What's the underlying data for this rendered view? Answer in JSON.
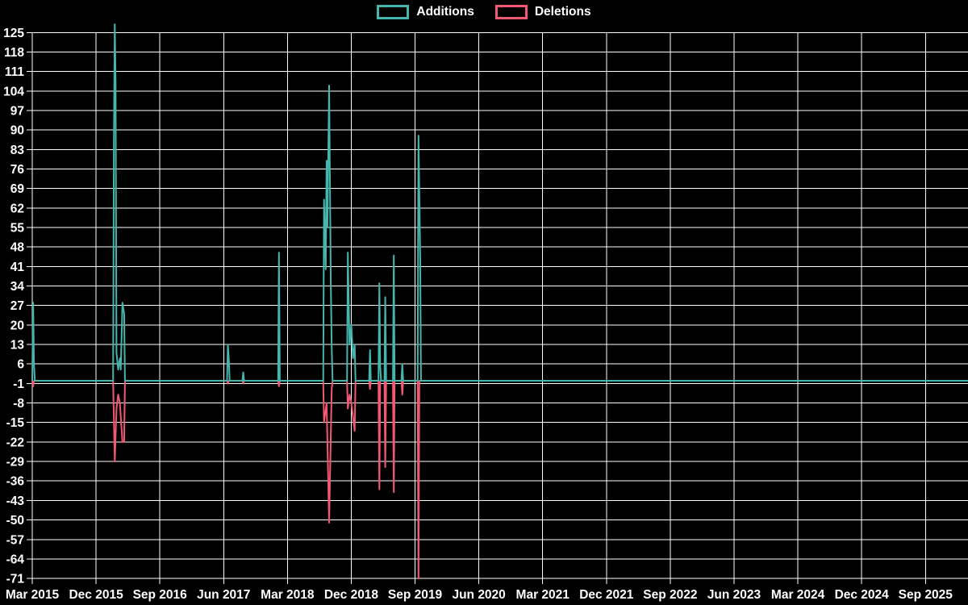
{
  "page": {
    "background": "#000000"
  },
  "legend": {
    "position": "top-center",
    "items": [
      {
        "label": "Additions",
        "color": "#45b6ae"
      },
      {
        "label": "Deletions",
        "color": "#f25872"
      }
    ]
  },
  "chart_data": {
    "type": "line",
    "title": "",
    "xlabel": "",
    "ylabel": "",
    "grid": true,
    "background": "#000000",
    "grid_color": "#ffffff",
    "x_axis": {
      "range": [
        2015.17,
        2026.17
      ],
      "tick_positions": [
        2015.17,
        2015.92,
        2016.67,
        2017.42,
        2018.17,
        2018.92,
        2019.67,
        2020.42,
        2021.17,
        2021.92,
        2022.67,
        2023.42,
        2024.17,
        2024.92,
        2025.67
      ],
      "tick_labels": [
        "Mar 2015",
        "Dec 2015",
        "Sep 2016",
        "Jun 2017",
        "Mar 2018",
        "Dec 2018",
        "Sep 2019",
        "Jun 2020",
        "Mar 2021",
        "Dec 2021",
        "Sep 2022",
        "Jun 2023",
        "Mar 2024",
        "Dec 2024",
        "Sep 2025"
      ]
    },
    "y_axis": {
      "range": [
        -73,
        128
      ],
      "tick_values": [
        125,
        118,
        111,
        104,
        97,
        90,
        83,
        76,
        69,
        62,
        55,
        48,
        41,
        34,
        27,
        20,
        13,
        6,
        -1,
        -8,
        -15,
        -22,
        -29,
        -36,
        -43,
        -50,
        -57,
        -64,
        -71
      ]
    },
    "series": [
      {
        "name": "Additions",
        "color": "#45b6ae",
        "points": [
          [
            2015.17,
            0
          ],
          [
            2015.18,
            28
          ],
          [
            2015.19,
            6
          ],
          [
            2015.2,
            0
          ],
          [
            2016.12,
            0
          ],
          [
            2016.13,
            86
          ],
          [
            2016.14,
            128
          ],
          [
            2016.15,
            107
          ],
          [
            2016.16,
            10
          ],
          [
            2016.18,
            4
          ],
          [
            2016.2,
            8
          ],
          [
            2016.21,
            4
          ],
          [
            2016.23,
            28
          ],
          [
            2016.25,
            24
          ],
          [
            2016.26,
            0
          ],
          [
            2017.46,
            0
          ],
          [
            2017.47,
            13
          ],
          [
            2017.48,
            8
          ],
          [
            2017.49,
            0
          ],
          [
            2017.64,
            0
          ],
          [
            2017.65,
            3
          ],
          [
            2017.66,
            0
          ],
          [
            2018.06,
            0
          ],
          [
            2018.07,
            46
          ],
          [
            2018.08,
            0
          ],
          [
            2018.59,
            0
          ],
          [
            2018.6,
            65
          ],
          [
            2018.62,
            40
          ],
          [
            2018.63,
            79
          ],
          [
            2018.64,
            55
          ],
          [
            2018.66,
            106
          ],
          [
            2018.68,
            35
          ],
          [
            2018.69,
            12
          ],
          [
            2018.7,
            0
          ],
          [
            2018.87,
            0
          ],
          [
            2018.88,
            46
          ],
          [
            2018.89,
            28
          ],
          [
            2018.9,
            13
          ],
          [
            2018.92,
            20
          ],
          [
            2018.94,
            8
          ],
          [
            2018.96,
            13
          ],
          [
            2018.97,
            0
          ],
          [
            2019.13,
            0
          ],
          [
            2019.14,
            11
          ],
          [
            2019.15,
            0
          ],
          [
            2019.24,
            0
          ],
          [
            2019.25,
            35
          ],
          [
            2019.26,
            5
          ],
          [
            2019.27,
            0
          ],
          [
            2019.31,
            0
          ],
          [
            2019.32,
            30
          ],
          [
            2019.33,
            0
          ],
          [
            2019.41,
            0
          ],
          [
            2019.42,
            45
          ],
          [
            2019.43,
            0
          ],
          [
            2019.51,
            0
          ],
          [
            2019.52,
            6
          ],
          [
            2019.53,
            0
          ],
          [
            2019.7,
            0
          ],
          [
            2019.71,
            88
          ],
          [
            2019.73,
            45
          ],
          [
            2019.74,
            0
          ],
          [
            2026.17,
            0
          ]
        ]
      },
      {
        "name": "Deletions",
        "color": "#f25872",
        "points": [
          [
            2015.17,
            0
          ],
          [
            2015.18,
            -2
          ],
          [
            2015.19,
            0
          ],
          [
            2016.12,
            0
          ],
          [
            2016.14,
            -29
          ],
          [
            2016.16,
            -10
          ],
          [
            2016.18,
            -5
          ],
          [
            2016.2,
            -8
          ],
          [
            2016.23,
            -22
          ],
          [
            2016.25,
            -22
          ],
          [
            2016.26,
            0
          ],
          [
            2017.46,
            0
          ],
          [
            2017.47,
            -1
          ],
          [
            2017.48,
            0
          ],
          [
            2017.64,
            0
          ],
          [
            2017.65,
            -1
          ],
          [
            2017.66,
            0
          ],
          [
            2018.06,
            0
          ],
          [
            2018.07,
            -2
          ],
          [
            2018.08,
            0
          ],
          [
            2018.59,
            0
          ],
          [
            2018.6,
            -15
          ],
          [
            2018.63,
            -8
          ],
          [
            2018.66,
            -51
          ],
          [
            2018.69,
            -3
          ],
          [
            2018.7,
            0
          ],
          [
            2018.87,
            0
          ],
          [
            2018.88,
            -10
          ],
          [
            2018.9,
            -5
          ],
          [
            2018.92,
            -8
          ],
          [
            2018.96,
            -18
          ],
          [
            2018.97,
            0
          ],
          [
            2019.13,
            0
          ],
          [
            2019.14,
            -3
          ],
          [
            2019.15,
            0
          ],
          [
            2019.24,
            0
          ],
          [
            2019.25,
            -39
          ],
          [
            2019.26,
            0
          ],
          [
            2019.31,
            0
          ],
          [
            2019.32,
            -31
          ],
          [
            2019.33,
            0
          ],
          [
            2019.41,
            0
          ],
          [
            2019.42,
            -40
          ],
          [
            2019.43,
            0
          ],
          [
            2019.51,
            0
          ],
          [
            2019.52,
            -5
          ],
          [
            2019.53,
            0
          ],
          [
            2019.7,
            0
          ],
          [
            2019.71,
            -71
          ],
          [
            2019.72,
            0
          ],
          [
            2026.17,
            0
          ]
        ]
      }
    ]
  }
}
